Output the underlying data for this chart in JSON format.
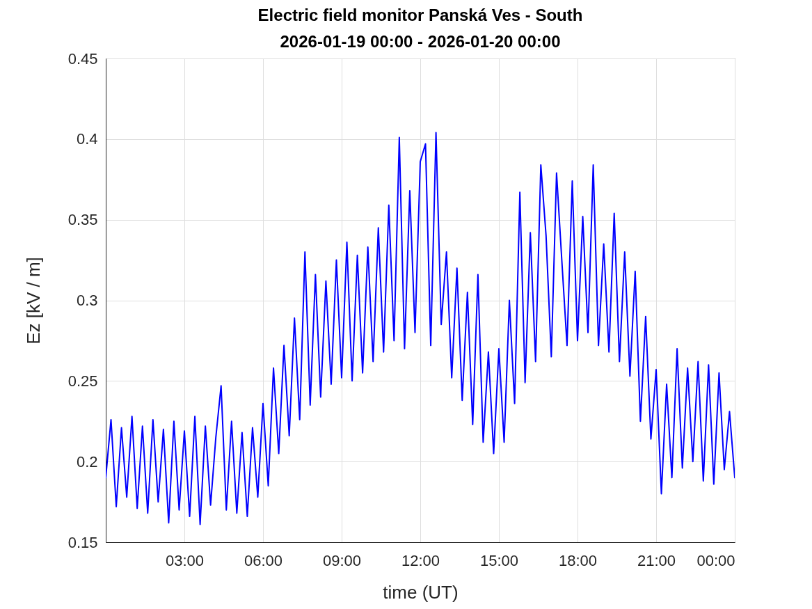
{
  "chart_data": {
    "type": "line",
    "title": "Electric field monitor Panská Ves - South",
    "subtitle": "2026-01-19 00:00 - 2026-01-20 00:00",
    "xlabel": "time (UT)",
    "ylabel": "Ez [kV / m]",
    "x": [
      0.0,
      0.2,
      0.4,
      0.6,
      0.8,
      1.0,
      1.2,
      1.4,
      1.6,
      1.8,
      2.0,
      2.2,
      2.4,
      2.6,
      2.8,
      3.0,
      3.2,
      3.4,
      3.6,
      3.8,
      4.0,
      4.2,
      4.4,
      4.6,
      4.8,
      5.0,
      5.2,
      5.4,
      5.6,
      5.8,
      6.0,
      6.2,
      6.4,
      6.6,
      6.8,
      7.0,
      7.2,
      7.4,
      7.6,
      7.8,
      8.0,
      8.2,
      8.4,
      8.6,
      8.8,
      9.0,
      9.2,
      9.4,
      9.6,
      9.8,
      10.0,
      10.2,
      10.4,
      10.6,
      10.8,
      11.0,
      11.2,
      11.4,
      11.6,
      11.8,
      12.0,
      12.2,
      12.4,
      12.6,
      12.8,
      13.0,
      13.2,
      13.4,
      13.6,
      13.8,
      14.0,
      14.2,
      14.4,
      14.6,
      14.8,
      15.0,
      15.2,
      15.4,
      15.6,
      15.8,
      16.0,
      16.2,
      16.4,
      16.6,
      16.8,
      17.0,
      17.2,
      17.4,
      17.6,
      17.8,
      18.0,
      18.2,
      18.4,
      18.6,
      18.8,
      19.0,
      19.2,
      19.4,
      19.6,
      19.8,
      20.0,
      20.2,
      20.4,
      20.6,
      20.8,
      21.0,
      21.2,
      21.4,
      21.6,
      21.8,
      22.0,
      22.2,
      22.4,
      22.6,
      22.8,
      23.0,
      23.2,
      23.4,
      23.6,
      23.8,
      24.0
    ],
    "series": [
      {
        "color": "#0000ff",
        "values": [
          0.19,
          0.226,
          0.172,
          0.221,
          0.178,
          0.228,
          0.171,
          0.222,
          0.168,
          0.226,
          0.175,
          0.22,
          0.162,
          0.225,
          0.17,
          0.219,
          0.166,
          0.228,
          0.161,
          0.222,
          0.173,
          0.215,
          0.247,
          0.17,
          0.225,
          0.168,
          0.218,
          0.166,
          0.221,
          0.178,
          0.236,
          0.185,
          0.258,
          0.205,
          0.272,
          0.216,
          0.289,
          0.226,
          0.33,
          0.235,
          0.316,
          0.24,
          0.312,
          0.248,
          0.325,
          0.252,
          0.336,
          0.25,
          0.328,
          0.255,
          0.333,
          0.262,
          0.345,
          0.268,
          0.359,
          0.275,
          0.401,
          0.27,
          0.368,
          0.28,
          0.386,
          0.397,
          0.272,
          0.404,
          0.285,
          0.33,
          0.252,
          0.32,
          0.238,
          0.305,
          0.223,
          0.316,
          0.212,
          0.268,
          0.205,
          0.27,
          0.212,
          0.3,
          0.236,
          0.367,
          0.249,
          0.342,
          0.262,
          0.384,
          0.34,
          0.265,
          0.379,
          0.325,
          0.272,
          0.374,
          0.275,
          0.352,
          0.28,
          0.384,
          0.272,
          0.335,
          0.268,
          0.354,
          0.262,
          0.33,
          0.253,
          0.318,
          0.225,
          0.29,
          0.214,
          0.257,
          0.18,
          0.248,
          0.19,
          0.27,
          0.196,
          0.258,
          0.2,
          0.262,
          0.188,
          0.26,
          0.186,
          0.255,
          0.195,
          0.231,
          0.19
        ]
      }
    ],
    "xlim": [
      0,
      24
    ],
    "xticks": [
      {
        "value": 3,
        "label": "03:00"
      },
      {
        "value": 6,
        "label": "06:00"
      },
      {
        "value": 9,
        "label": "09:00"
      },
      {
        "value": 12,
        "label": "12:00"
      },
      {
        "value": 15,
        "label": "15:00"
      },
      {
        "value": 18,
        "label": "18:00"
      },
      {
        "value": 21,
        "label": "21:00"
      },
      {
        "value": 24,
        "label": "00:00"
      }
    ],
    "ylim": [
      0.15,
      0.45
    ],
    "yticks": [
      0.15,
      0.2,
      0.25,
      0.3,
      0.35,
      0.4,
      0.45
    ],
    "grid": true
  }
}
